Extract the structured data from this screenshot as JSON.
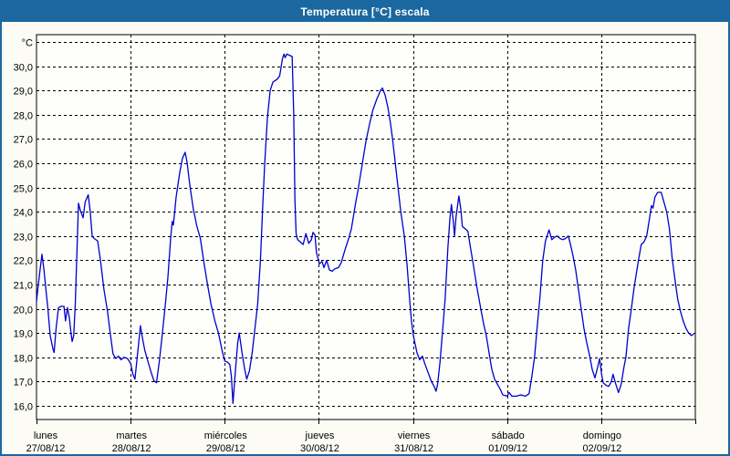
{
  "window": {
    "title": "Temperatura [°C] escala"
  },
  "colors": {
    "frame_blue": "#1a689f",
    "page_bg": "#fcfcf5",
    "plot_bg": "#fefefb",
    "grid": "#000000",
    "line": "#0000cc",
    "text": "#000000"
  },
  "chart_data": {
    "type": "line",
    "title": "Temperatura [°C] escala",
    "series_name": "Temperatura",
    "unit": "°C",
    "grid": "dashed",
    "legend": "none",
    "y_axis": {
      "ylim_shown": [
        16.0,
        31.0
      ],
      "labels": [
        {
          "value": 31,
          "label": "°C"
        },
        {
          "value": 30,
          "label": "30,0"
        },
        {
          "value": 29,
          "label": "29,0"
        },
        {
          "value": 28,
          "label": "28,0"
        },
        {
          "value": 27,
          "label": "27,0"
        },
        {
          "value": 26,
          "label": "26,0"
        },
        {
          "value": 25,
          "label": "25,0"
        },
        {
          "value": 24,
          "label": "24,0"
        },
        {
          "value": 23,
          "label": "23,0"
        },
        {
          "value": 22,
          "label": "22,0"
        },
        {
          "value": 21,
          "label": "21,0"
        },
        {
          "value": 20,
          "label": "20,0"
        },
        {
          "value": 19,
          "label": "19,0"
        },
        {
          "value": 18,
          "label": "18,0"
        },
        {
          "value": 17,
          "label": "17,0"
        },
        {
          "value": 16,
          "label": "16,0"
        }
      ]
    },
    "x_axis": {
      "total_hours": 168,
      "days": [
        {
          "name": "lunes",
          "date": "27/08/12"
        },
        {
          "name": "martes",
          "date": "28/08/12"
        },
        {
          "name": "miércoles",
          "date": "29/08/12"
        },
        {
          "name": "jueves",
          "date": "30/08/12"
        },
        {
          "name": "viernes",
          "date": "31/08/12"
        },
        {
          "name": "sábado",
          "date": "01/09/12"
        },
        {
          "name": "domingo",
          "date": "02/09/12"
        }
      ]
    },
    "points": [
      [
        0.0,
        20.3
      ],
      [
        0.4,
        20.9
      ],
      [
        0.9,
        21.6
      ],
      [
        1.4,
        22.25
      ],
      [
        1.9,
        21.6
      ],
      [
        2.4,
        20.8
      ],
      [
        2.9,
        20.0
      ],
      [
        3.5,
        18.9
      ],
      [
        4.2,
        18.35
      ],
      [
        4.5,
        18.2
      ],
      [
        5.0,
        19.2
      ],
      [
        5.6,
        20.05
      ],
      [
        6.3,
        20.1
      ],
      [
        7.0,
        20.1
      ],
      [
        7.4,
        19.5
      ],
      [
        7.9,
        20.05
      ],
      [
        8.4,
        19.6
      ],
      [
        8.8,
        19.0
      ],
      [
        9.1,
        18.65
      ],
      [
        9.5,
        18.9
      ],
      [
        9.9,
        20.2
      ],
      [
        10.3,
        22.3
      ],
      [
        10.7,
        24.35
      ],
      [
        11.2,
        24.05
      ],
      [
        11.9,
        23.75
      ],
      [
        12.4,
        24.4
      ],
      [
        13.2,
        24.7
      ],
      [
        13.7,
        24.0
      ],
      [
        14.2,
        23.0
      ],
      [
        14.7,
        22.9
      ],
      [
        15.6,
        22.8
      ],
      [
        16.3,
        22.0
      ],
      [
        17.2,
        20.8
      ],
      [
        18.1,
        19.9
      ],
      [
        18.8,
        19.0
      ],
      [
        19.5,
        18.15
      ],
      [
        20.2,
        17.95
      ],
      [
        20.9,
        18.05
      ],
      [
        21.6,
        17.9
      ],
      [
        22.3,
        18.0
      ],
      [
        23.2,
        17.95
      ],
      [
        24.0,
        17.75
      ],
      [
        24.6,
        17.3
      ],
      [
        25.1,
        17.1
      ],
      [
        25.8,
        18.2
      ],
      [
        26.5,
        19.3
      ],
      [
        26.9,
        18.9
      ],
      [
        27.6,
        18.3
      ],
      [
        28.3,
        17.9
      ],
      [
        29.2,
        17.4
      ],
      [
        29.9,
        17.05
      ],
      [
        30.6,
        16.95
      ],
      [
        31.3,
        17.8
      ],
      [
        32.1,
        19.0
      ],
      [
        32.8,
        20.1
      ],
      [
        33.5,
        21.3
      ],
      [
        34.2,
        22.9
      ],
      [
        34.6,
        23.6
      ],
      [
        34.9,
        23.45
      ],
      [
        35.6,
        24.6
      ],
      [
        36.5,
        25.6
      ],
      [
        37.2,
        26.2
      ],
      [
        37.9,
        26.45
      ],
      [
        38.4,
        26.05
      ],
      [
        39.1,
        25.1
      ],
      [
        40.0,
        24.1
      ],
      [
        40.9,
        23.4
      ],
      [
        41.8,
        22.9
      ],
      [
        42.7,
        21.9
      ],
      [
        43.6,
        21.0
      ],
      [
        44.5,
        20.2
      ],
      [
        45.5,
        19.5
      ],
      [
        46.4,
        19.0
      ],
      [
        47.3,
        18.3
      ],
      [
        48.0,
        17.85
      ],
      [
        48.7,
        17.8
      ],
      [
        49.3,
        17.7
      ],
      [
        49.7,
        17.2
      ],
      [
        50.1,
        16.1
      ],
      [
        50.7,
        17.4
      ],
      [
        51.3,
        18.6
      ],
      [
        51.7,
        19.0
      ],
      [
        52.4,
        18.2
      ],
      [
        53.1,
        17.5
      ],
      [
        53.6,
        17.1
      ],
      [
        54.3,
        17.45
      ],
      [
        55.0,
        18.2
      ],
      [
        55.7,
        19.2
      ],
      [
        56.4,
        20.2
      ],
      [
        57.1,
        22.0
      ],
      [
        57.7,
        24.3
      ],
      [
        58.2,
        26.0
      ],
      [
        58.9,
        27.9
      ],
      [
        59.6,
        29.0
      ],
      [
        60.3,
        29.35
      ],
      [
        61.3,
        29.45
      ],
      [
        62.0,
        29.6
      ],
      [
        62.7,
        30.3
      ],
      [
        63.1,
        30.5
      ],
      [
        63.4,
        30.35
      ],
      [
        63.8,
        30.5
      ],
      [
        64.5,
        30.45
      ],
      [
        65.2,
        30.4
      ],
      [
        65.6,
        28.0
      ],
      [
        65.9,
        24.5
      ],
      [
        66.2,
        23.1
      ],
      [
        66.6,
        22.85
      ],
      [
        67.3,
        22.75
      ],
      [
        68.0,
        22.65
      ],
      [
        68.7,
        23.1
      ],
      [
        69.4,
        22.7
      ],
      [
        70.1,
        22.85
      ],
      [
        70.5,
        23.15
      ],
      [
        71.0,
        23.05
      ],
      [
        71.4,
        22.3
      ],
      [
        72.1,
        21.85
      ],
      [
        72.8,
        21.95
      ],
      [
        73.3,
        21.7
      ],
      [
        74.0,
        22.0
      ],
      [
        74.7,
        21.6
      ],
      [
        75.4,
        21.55
      ],
      [
        76.1,
        21.65
      ],
      [
        77.0,
        21.7
      ],
      [
        77.7,
        21.9
      ],
      [
        78.6,
        22.4
      ],
      [
        79.6,
        22.9
      ],
      [
        80.3,
        23.3
      ],
      [
        81.2,
        24.2
      ],
      [
        82.1,
        25.0
      ],
      [
        83.0,
        25.9
      ],
      [
        84.0,
        26.9
      ],
      [
        84.9,
        27.6
      ],
      [
        85.8,
        28.2
      ],
      [
        86.8,
        28.65
      ],
      [
        87.2,
        28.8
      ],
      [
        87.7,
        29.0
      ],
      [
        88.2,
        29.1
      ],
      [
        88.9,
        28.8
      ],
      [
        89.6,
        28.3
      ],
      [
        90.3,
        27.6
      ],
      [
        90.8,
        27.0
      ],
      [
        91.5,
        26.0
      ],
      [
        92.2,
        25.0
      ],
      [
        92.9,
        24.0
      ],
      [
        93.8,
        23.0
      ],
      [
        94.5,
        21.8
      ],
      [
        95.2,
        20.3
      ],
      [
        95.6,
        19.5
      ],
      [
        96.1,
        18.9
      ],
      [
        97.0,
        18.2
      ],
      [
        97.7,
        17.9
      ],
      [
        98.4,
        18.05
      ],
      [
        99.1,
        17.7
      ],
      [
        99.8,
        17.4
      ],
      [
        100.7,
        17.0
      ],
      [
        101.4,
        16.8
      ],
      [
        101.9,
        16.6
      ],
      [
        102.3,
        16.9
      ],
      [
        102.9,
        17.8
      ],
      [
        103.4,
        18.8
      ],
      [
        104.2,
        20.4
      ],
      [
        104.9,
        22.5
      ],
      [
        105.4,
        23.7
      ],
      [
        105.8,
        24.3
      ],
      [
        106.3,
        23.6
      ],
      [
        106.6,
        23.0
      ],
      [
        107.0,
        23.8
      ],
      [
        107.7,
        24.65
      ],
      [
        108.2,
        24.1
      ],
      [
        108.6,
        23.4
      ],
      [
        109.3,
        23.3
      ],
      [
        110.0,
        23.2
      ],
      [
        110.7,
        22.5
      ],
      [
        111.4,
        21.8
      ],
      [
        112.3,
        20.9
      ],
      [
        113.3,
        20.0
      ],
      [
        114.0,
        19.4
      ],
      [
        114.7,
        18.9
      ],
      [
        115.4,
        18.2
      ],
      [
        116.1,
        17.5
      ],
      [
        116.8,
        17.1
      ],
      [
        117.5,
        16.9
      ],
      [
        118.2,
        16.7
      ],
      [
        118.9,
        16.45
      ],
      [
        120.0,
        16.4
      ],
      [
        120.5,
        16.55
      ],
      [
        121.2,
        16.4
      ],
      [
        122.4,
        16.4
      ],
      [
        123.5,
        16.45
      ],
      [
        124.7,
        16.4
      ],
      [
        125.6,
        16.5
      ],
      [
        126.3,
        17.2
      ],
      [
        127.0,
        18.0
      ],
      [
        127.7,
        19.3
      ],
      [
        128.4,
        20.5
      ],
      [
        129.1,
        22.0
      ],
      [
        129.8,
        22.8
      ],
      [
        130.7,
        23.25
      ],
      [
        131.4,
        22.85
      ],
      [
        132.1,
        22.95
      ],
      [
        132.8,
        23.0
      ],
      [
        133.5,
        22.9
      ],
      [
        134.2,
        22.85
      ],
      [
        134.9,
        22.9
      ],
      [
        135.6,
        23.0
      ],
      [
        136.1,
        22.7
      ],
      [
        136.8,
        22.2
      ],
      [
        137.5,
        21.6
      ],
      [
        138.2,
        20.8
      ],
      [
        138.9,
        20.0
      ],
      [
        139.6,
        19.2
      ],
      [
        140.3,
        18.6
      ],
      [
        141.0,
        18.1
      ],
      [
        141.7,
        17.5
      ],
      [
        142.4,
        17.15
      ],
      [
        143.1,
        17.6
      ],
      [
        143.6,
        17.95
      ],
      [
        144.1,
        17.3
      ],
      [
        144.5,
        16.95
      ],
      [
        145.2,
        16.85
      ],
      [
        145.9,
        16.8
      ],
      [
        146.6,
        17.0
      ],
      [
        147.0,
        17.3
      ],
      [
        147.7,
        16.9
      ],
      [
        148.4,
        16.55
      ],
      [
        149.1,
        16.9
      ],
      [
        149.8,
        17.6
      ],
      [
        150.3,
        18.0
      ],
      [
        151.0,
        19.2
      ],
      [
        151.7,
        20.0
      ],
      [
        152.4,
        20.9
      ],
      [
        153.1,
        21.6
      ],
      [
        153.5,
        22.0
      ],
      [
        154.2,
        22.65
      ],
      [
        154.9,
        22.75
      ],
      [
        155.6,
        23.0
      ],
      [
        156.3,
        23.7
      ],
      [
        156.8,
        24.25
      ],
      [
        157.2,
        24.15
      ],
      [
        157.7,
        24.6
      ],
      [
        158.4,
        24.8
      ],
      [
        159.3,
        24.8
      ],
      [
        160.0,
        24.4
      ],
      [
        160.7,
        24.0
      ],
      [
        161.4,
        23.3
      ],
      [
        162.1,
        22.1
      ],
      [
        162.8,
        21.2
      ],
      [
        163.5,
        20.4
      ],
      [
        164.2,
        19.9
      ],
      [
        164.9,
        19.5
      ],
      [
        165.6,
        19.2
      ],
      [
        166.3,
        19.0
      ],
      [
        167.0,
        18.9
      ],
      [
        167.5,
        18.95
      ]
    ]
  }
}
